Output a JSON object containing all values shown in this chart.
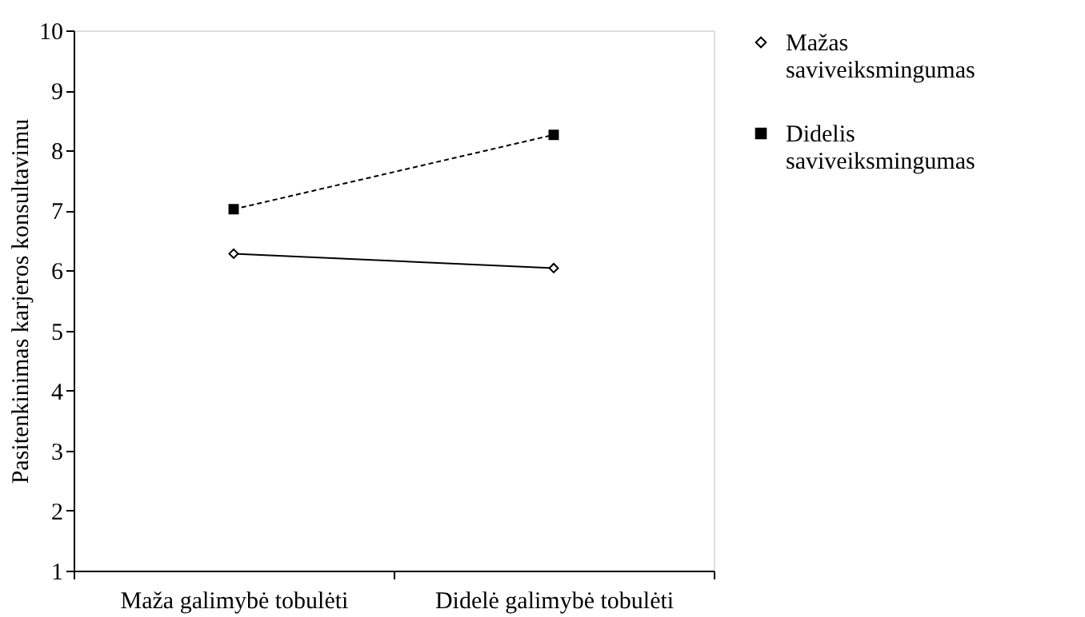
{
  "chart_data": {
    "type": "line",
    "ylabel": "Pasitenkinimas karjeros konsultavimu",
    "categories": [
      "Maža galimybė tobulėti",
      "Didelė galimybė tobulėti"
    ],
    "series": [
      {
        "name": "Mažas saviveiksmingumas",
        "color": "#000000",
        "values": [
          6.28,
          6.04
        ],
        "marker": "diamond",
        "line_style": "solid"
      },
      {
        "name": "Didelis saviveiksmingumas",
        "color": "#000000",
        "values": [
          7.02,
          8.26
        ],
        "marker": "square",
        "line_style": "dashed"
      }
    ],
    "ylim": [
      1,
      10
    ],
    "yticks": [
      1,
      2,
      3,
      4,
      5,
      6,
      7,
      8,
      9,
      10
    ],
    "grid": false,
    "legend": "right"
  }
}
